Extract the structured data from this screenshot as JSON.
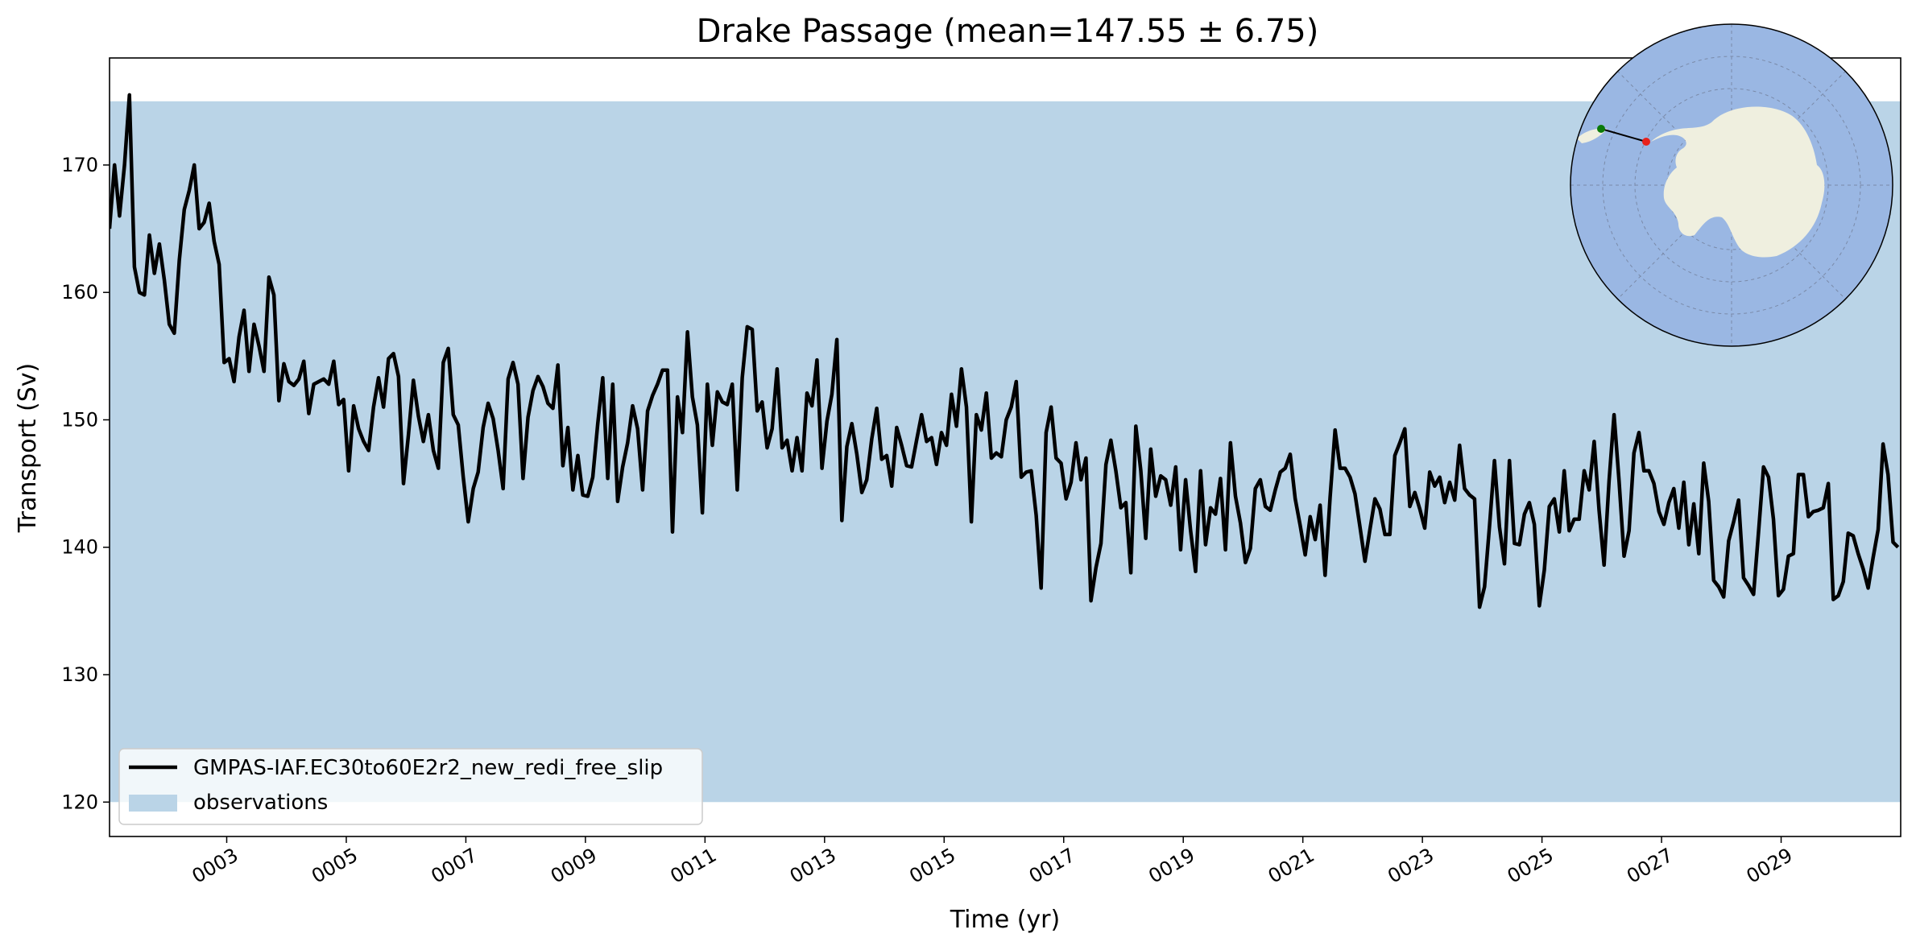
{
  "chart_data": {
    "type": "line",
    "title": "Drake Passage (mean=147.55 ± 6.75)",
    "xlabel": "Time (yr)",
    "ylabel": "Transport (Sv)",
    "xlim": [
      1.04,
      31.0
    ],
    "ylim": [
      117.3,
      178.4
    ],
    "xticks": [
      3,
      5,
      7,
      9,
      11,
      13,
      15,
      17,
      19,
      21,
      23,
      25,
      27,
      29
    ],
    "xtick_labels": [
      "0003",
      "0005",
      "0007",
      "0009",
      "0011",
      "0013",
      "0015",
      "0017",
      "0019",
      "0021",
      "0023",
      "0025",
      "0027",
      "0029"
    ],
    "yticks": [
      120,
      130,
      140,
      150,
      160,
      170
    ],
    "ytick_labels": [
      "120",
      "130",
      "140",
      "150",
      "160",
      "170"
    ],
    "legend_position": "lower-left",
    "observations_band": {
      "name": "observations",
      "y_min": 120,
      "y_max": 175,
      "color": "#bad4e7"
    },
    "series": [
      {
        "name": "GMPAS-IAF.EC30to60E2r2_new_redi_free_slip",
        "color": "#000000",
        "x_start": 1.04,
        "x_step": 0.08333,
        "values": [
          165,
          170,
          166,
          170,
          175.5,
          162,
          160,
          159.8,
          164.5,
          161.5,
          163.8,
          161,
          157.5,
          156.8,
          162.5,
          166.5,
          168,
          170,
          165,
          165.5,
          167,
          164,
          162.2,
          154.5,
          154.8,
          153,
          156.5,
          158.6,
          153.8,
          157.5,
          155.8,
          153.8,
          161.2,
          159.8,
          151.5,
          154.4,
          153,
          152.7,
          153.2,
          154.6,
          150.5,
          152.8,
          153,
          153.2,
          152.8,
          154.6,
          151.2,
          151.6,
          146,
          151.1,
          149.3,
          148.3,
          147.6,
          151,
          153.3,
          151,
          154.8,
          155.2,
          153.4,
          145,
          148.8,
          153.1,
          150.3,
          148.3,
          150.4,
          147.6,
          146.2,
          154.5,
          155.6,
          150.4,
          149.6,
          145.5,
          142,
          144.6,
          145.9,
          149.4,
          151.3,
          150.1,
          147.6,
          144.6,
          153.2,
          154.5,
          152.8,
          145.4,
          150.2,
          152.3,
          153.4,
          152.6,
          151.3,
          150.9,
          154.3,
          146.4,
          149.4,
          144.5,
          147.2,
          144.1,
          144,
          145.5,
          149.7,
          153.3,
          145.4,
          152.8,
          143.6,
          146.3,
          148.2,
          151.1,
          149.3,
          144.5,
          150.7,
          151.9,
          152.8,
          153.9,
          153.9,
          141.2,
          151.8,
          149,
          156.9,
          151.8,
          149.6,
          142.7,
          152.8,
          148,
          152.2,
          151.4,
          151.2,
          152.8,
          144.5,
          153.3,
          157.3,
          157.1,
          150.7,
          151.4,
          147.8,
          149.3,
          154,
          147.8,
          148.4,
          146,
          148.6,
          146,
          152.1,
          151.1,
          154.7,
          146.2,
          149.9,
          152,
          156.3,
          142.1,
          147.9,
          149.7,
          147.3,
          144.3,
          145.3,
          148.5,
          150.9,
          146.9,
          147.2,
          144.8,
          149.4,
          148,
          146.4,
          146.3,
          148.4,
          150.4,
          148.3,
          148.6,
          146.5,
          149,
          148,
          152,
          149.5,
          154,
          151,
          142,
          150.4,
          149.2,
          152.1,
          147,
          147.4,
          147.1,
          150,
          151,
          153,
          145.5,
          145.9,
          146,
          142.5,
          136.8,
          149,
          151,
          147,
          146.6,
          143.8,
          145.1,
          148.2,
          145.3,
          147,
          135.8,
          138.4,
          140.3,
          146.5,
          148.4,
          146,
          143.1,
          143.5,
          138,
          149.5,
          146,
          140.7,
          147.7,
          144,
          145.6,
          145.3,
          143.3,
          146.3,
          139.8,
          145.3,
          141.3,
          138.1,
          146,
          140.2,
          143.1,
          142.6,
          145.4,
          139.8,
          148.2,
          144,
          141.9,
          138.8,
          139.9,
          144.6,
          145.3,
          143.2,
          142.9,
          144.5,
          145.9,
          146.2,
          147.3,
          143.8,
          141.7,
          139.4,
          142.4,
          140.6,
          143.3,
          137.8,
          143.9,
          149.2,
          146.2,
          146.2,
          145.5,
          144.2,
          141.6,
          138.9,
          141.4,
          143.8,
          143,
          141,
          141,
          147.2,
          148.2,
          149.3,
          143.2,
          144.3,
          143,
          141.5,
          145.9,
          144.8,
          145.5,
          143.5,
          145.1,
          143.7,
          148,
          144.6,
          144.1,
          143.8,
          135.3,
          136.9,
          141.7,
          146.8,
          141.6,
          138.7,
          146.8,
          140.3,
          140.2,
          142.6,
          143.5,
          141.8,
          135.4,
          138.2,
          143.2,
          143.8,
          141.2,
          146,
          141.3,
          142.2,
          142.2,
          146,
          144.5,
          148.3,
          142.9,
          138.6,
          145.2,
          150.4,
          145.2,
          139.3,
          141.3,
          147.4,
          149,
          146,
          146,
          145,
          142.8,
          141.8,
          143.5,
          144.6,
          141.5,
          145.1,
          140.2,
          143.4,
          139.5,
          146.6,
          143.6,
          137.4,
          136.9,
          136.1,
          140.5,
          142,
          143.7,
          137.6,
          137,
          136.3,
          141.2,
          146.3,
          145.5,
          142.2,
          136.2,
          136.7,
          139.3,
          139.5,
          145.7,
          145.7,
          142.4,
          142.8,
          142.9,
          143.1,
          145,
          135.9,
          136.2,
          137.3,
          141.1,
          140.9,
          139.5,
          138.3,
          136.8,
          139.2,
          141.4,
          148.1,
          145.7,
          140.4,
          140
        ]
      }
    ]
  }
}
